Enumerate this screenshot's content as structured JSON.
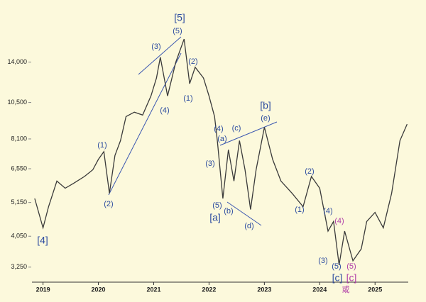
{
  "chart_data": {
    "type": "line",
    "x": [
      2018.85,
      2019.0,
      2019.1,
      2019.25,
      2019.4,
      2019.55,
      2019.75,
      2019.9,
      2020.0,
      2020.1,
      2020.2,
      2020.3,
      2020.4,
      2020.5,
      2020.65,
      2020.8,
      2020.95,
      2021.05,
      2021.12,
      2021.25,
      2021.4,
      2021.55,
      2021.65,
      2021.75,
      2021.9,
      2022.0,
      2022.1,
      2022.15,
      2022.25,
      2022.35,
      2022.45,
      2022.55,
      2022.65,
      2022.75,
      2022.85,
      2023.0,
      2023.15,
      2023.3,
      2023.5,
      2023.7,
      2023.85,
      2024.0,
      2024.15,
      2024.25,
      2024.35,
      2024.45,
      2024.6,
      2024.75,
      2024.85,
      2025.0,
      2025.15,
      2025.3,
      2025.45,
      2025.58
    ],
    "values": [
      5300,
      4300,
      5000,
      6000,
      5700,
      5900,
      6200,
      6500,
      7000,
      7400,
      5500,
      7200,
      8000,
      9500,
      9800,
      9600,
      11000,
      12500,
      14500,
      11000,
      14000,
      16500,
      12000,
      13500,
      12500,
      11000,
      9500,
      8000,
      5300,
      7500,
      6000,
      8000,
      6500,
      4900,
      6500,
      8800,
      7000,
      6000,
      5500,
      5000,
      6200,
      5700,
      4200,
      4500,
      3300,
      4200,
      3400,
      3700,
      4500,
      4800,
      4300,
      5500,
      8000,
      9000
    ],
    "color": "#3a3a3a",
    "xlim": [
      2018.8,
      2025.6
    ],
    "xticks": [
      2019,
      2020,
      2021,
      2022,
      2023,
      2024,
      2025
    ],
    "ylim": [
      2920,
      20200
    ],
    "yticks": [
      {
        "value": 3250,
        "label": "3,250"
      },
      {
        "value": 4050,
        "label": "4,050"
      },
      {
        "value": 5150,
        "label": "5,150"
      },
      {
        "value": 6550,
        "label": "6,550"
      },
      {
        "value": 8100,
        "label": "8,100"
      },
      {
        "value": 10500,
        "label": "10,500"
      },
      {
        "value": 14000,
        "label": "14,000"
      }
    ],
    "log_scale": true,
    "annotations": [
      {
        "text": "[5]",
        "color": "#2e4da0"
      },
      {
        "text": "(5)",
        "color": "#2e4da0"
      },
      {
        "text": "(3)",
        "color": "#2e4da0"
      },
      {
        "text": "(2)",
        "color": "#2e4da0"
      },
      {
        "text": "(1)",
        "color": "#2e4da0"
      },
      {
        "text": "(4)",
        "color": "#2e4da0"
      },
      {
        "text": "(1)",
        "color": "#2e4da0"
      },
      {
        "text": "(2)",
        "color": "#2e4da0"
      },
      {
        "text": "[4]",
        "color": "#2e4da0"
      },
      {
        "text": "[b]",
        "color": "#2e4da0"
      },
      {
        "text": "(e)",
        "color": "#2e4da0"
      },
      {
        "text": "(c)",
        "color": "#2e4da0"
      },
      {
        "text": "(4)",
        "color": "#2e4da0"
      },
      {
        "text": "(a)",
        "color": "#2e4da0"
      },
      {
        "text": "(3)",
        "color": "#2e4da0"
      },
      {
        "text": "(5)",
        "color": "#2e4da0"
      },
      {
        "text": "(b)",
        "color": "#2e4da0"
      },
      {
        "text": "[a]",
        "color": "#2e4da0"
      },
      {
        "text": "(d)",
        "color": "#2e4da0"
      },
      {
        "text": "(2)",
        "color": "#2e4da0"
      },
      {
        "text": "(1)",
        "color": "#2e4da0"
      },
      {
        "text": "(4)",
        "color": "#2e4da0"
      },
      {
        "text": "(4)",
        "color": "#b03ea8"
      },
      {
        "text": "(3)",
        "color": "#2e4da0"
      },
      {
        "text": "(5)",
        "color": "#2e4da0"
      },
      {
        "text": "(5)",
        "color": "#b03ea8"
      },
      {
        "text": "[c]",
        "color": "#2e4da0"
      },
      {
        "text": "[c]",
        "color": "#b03ea8"
      },
      {
        "text": "或",
        "color": "#b03ea8"
      }
    ]
  }
}
